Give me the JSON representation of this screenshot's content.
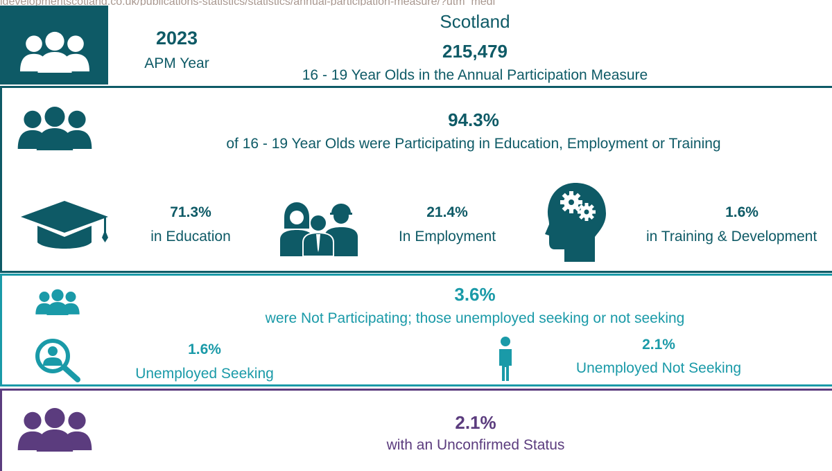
{
  "browser": {
    "url_fragment": "idevelopmentscotland.co.uk/publications-statistics/statistics/annual-participation-measure/?utm_medi"
  },
  "header": {
    "year": "2023",
    "year_label": "APM Year",
    "region": "Scotland",
    "total": "215,479",
    "total_label": "16 - 19 Year Olds in the Annual Participation Measure"
  },
  "participating": {
    "percent": "94.3%",
    "label": "of  16 - 19 Year Olds were Participating in Education, Employment or Training",
    "items": [
      {
        "percent": "71.3%",
        "label": "in Education",
        "icon": "graduation-cap-icon"
      },
      {
        "percent": "21.4%",
        "label": "In Employment",
        "icon": "workers-icon"
      },
      {
        "percent": "1.6%",
        "label": "in Training & Development",
        "icon": "head-gears-icon"
      }
    ]
  },
  "not_participating": {
    "percent": "3.6%",
    "label": "were Not Participating; those unemployed seeking or not seeking",
    "items": [
      {
        "percent": "1.6%",
        "label": "Unemployed Seeking",
        "icon": "magnifier-person-icon"
      },
      {
        "percent": "2.1%",
        "label": "Unemployed Not Seeking",
        "icon": "person-standing-icon"
      }
    ]
  },
  "unconfirmed": {
    "percent": "2.1%",
    "label": "with an Unconfirmed Status"
  },
  "colors": {
    "dark_teal": "#0e5a66",
    "teal": "#1a9aa8",
    "purple": "#5b3c7e"
  }
}
